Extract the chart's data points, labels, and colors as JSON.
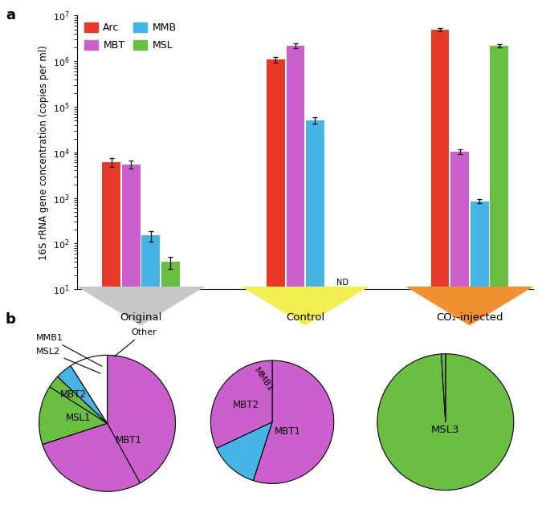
{
  "bar_groups": [
    "Original",
    "Control",
    "CO₂-injected"
  ],
  "bar_labels": [
    "Arc",
    "MBT",
    "MMB",
    "MSL"
  ],
  "bar_colors": [
    "#E8392A",
    "#CC5FCE",
    "#47B4E8",
    "#6ABF43"
  ],
  "bar_values": [
    [
      6200,
      5500,
      150,
      40
    ],
    [
      1100000,
      2200000,
      50000,
      null
    ],
    [
      5000000,
      10500,
      850,
      2200000
    ]
  ],
  "bar_errors": [
    [
      1400,
      1000,
      40,
      12
    ],
    [
      150000,
      300000,
      8000,
      null
    ],
    [
      400000,
      1200,
      80,
      180000
    ]
  ],
  "ylim": [
    10,
    10000000.0
  ],
  "ylabel": "16S rRNA gene concentration (copies per ml)",
  "nd_label": "ND",
  "bg_colors": [
    "#C8C8C8",
    "#F0EE50",
    "#F09030"
  ],
  "group_centers": [
    0.42,
    1.5,
    2.58
  ],
  "pie_data": [
    {
      "labels": [
        "MBT1",
        "MBT2",
        "MSL1",
        "MSL2",
        "MMB1",
        "Other"
      ],
      "sizes": [
        42,
        28,
        14,
        3,
        4,
        9
      ],
      "colors": [
        "#CC5FCE",
        "#CC5FCE",
        "#6ABF43",
        "#6ABF43",
        "#47B4E8",
        "#FFFFFF"
      ],
      "startangle": 90,
      "counterclock": false
    },
    {
      "labels": [
        "MBT1",
        "MMB1",
        "MBT2"
      ],
      "sizes": [
        55,
        13,
        32
      ],
      "colors": [
        "#CC5FCE",
        "#47B4E8",
        "#CC5FCE"
      ],
      "startangle": 90,
      "counterclock": false
    },
    {
      "labels": [
        "MSL3",
        "_nolegend_"
      ],
      "sizes": [
        99,
        1
      ],
      "colors": [
        "#6ABF43",
        "#6ABF43"
      ],
      "startangle": 90,
      "counterclock": false
    }
  ],
  "legend_items": [
    {
      "label": "Arc",
      "color": "#E8392A"
    },
    {
      "label": "MBT",
      "color": "#CC5FCE"
    },
    {
      "label": "MMB",
      "color": "#47B4E8"
    },
    {
      "label": "MSL",
      "color": "#6ABF43"
    }
  ]
}
